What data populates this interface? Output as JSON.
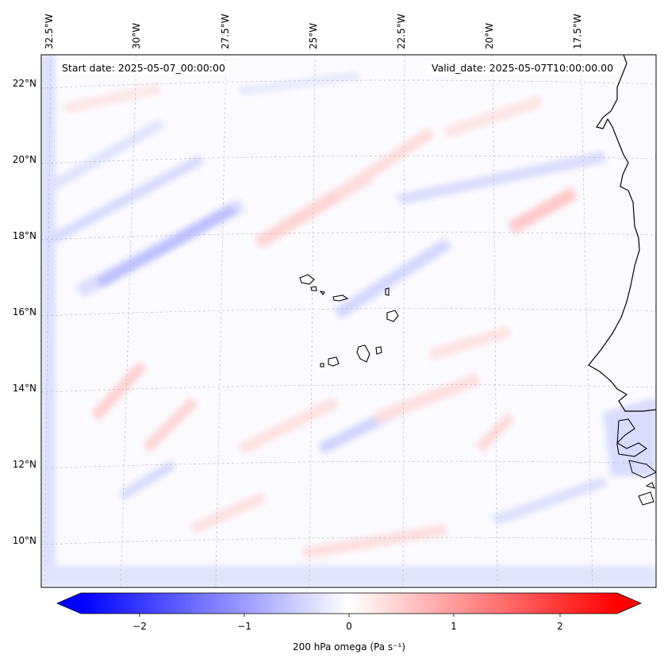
{
  "map": {
    "start_date": "Start date: 2025-05-07_00:00:00",
    "valid_date": "Valid_date: 2025-05-07T10:00:00.00",
    "longitude_labels": [
      "32.5°W",
      "30°W",
      "27.5°W",
      "25°W",
      "22.5°W",
      "20°W",
      "17.5°W"
    ],
    "latitude_labels": [
      "22°N",
      "20°N",
      "18°N",
      "16°N",
      "14°N",
      "12°N",
      "10°N"
    ],
    "variable": "200 hPa omega",
    "units": "Pa s⁻¹"
  },
  "colorbar": {
    "label": "200 hPa omega (Pa s⁻¹)",
    "ticks": [
      "−2",
      "−1",
      "0",
      "1",
      "2"
    ],
    "tick_values": [
      -2,
      -1,
      0,
      1,
      2
    ],
    "range": [
      -2.6,
      2.6
    ],
    "colormap": "bwr",
    "extend": "both"
  },
  "colors": {
    "negative": "#0000ff",
    "zero": "#ffffff",
    "positive": "#ff0000"
  }
}
